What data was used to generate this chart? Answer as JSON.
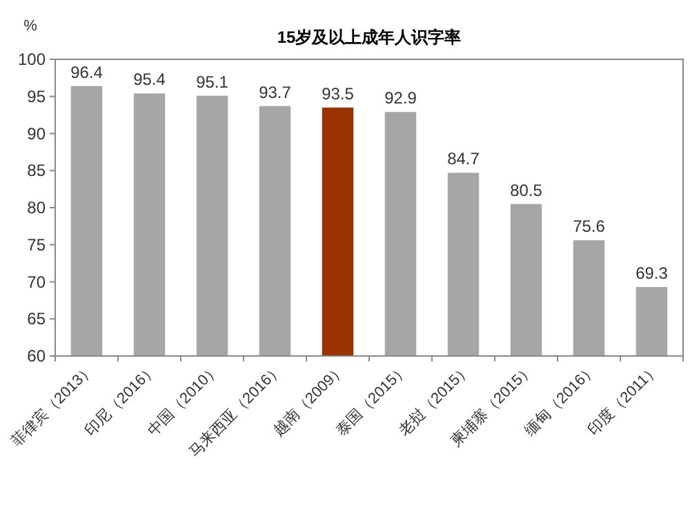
{
  "chart_data": {
    "type": "bar",
    "title": "15岁及以上成年人识字率",
    "ylabel": "%",
    "categories": [
      "菲律宾（2013）",
      "印尼（2016）",
      "中国（2010）",
      "马来西亚（2016）",
      "越南（2009）",
      "泰国（2015）",
      "老挝（2015）",
      "柬埔寨（2015）",
      "缅甸（2016）",
      "印度（2011）"
    ],
    "values": [
      96.4,
      95.4,
      95.1,
      93.7,
      93.5,
      92.9,
      84.7,
      80.5,
      75.6,
      69.3
    ],
    "colors": [
      "#a6a6a6",
      "#a6a6a6",
      "#a6a6a6",
      "#a6a6a6",
      "#993300",
      "#a6a6a6",
      "#a6a6a6",
      "#a6a6a6",
      "#a6a6a6",
      "#a6a6a6"
    ],
    "ylim": [
      60,
      100
    ],
    "yticks": [
      60,
      65,
      70,
      75,
      80,
      85,
      90,
      95,
      100
    ],
    "data_labels": true,
    "grid": false
  }
}
